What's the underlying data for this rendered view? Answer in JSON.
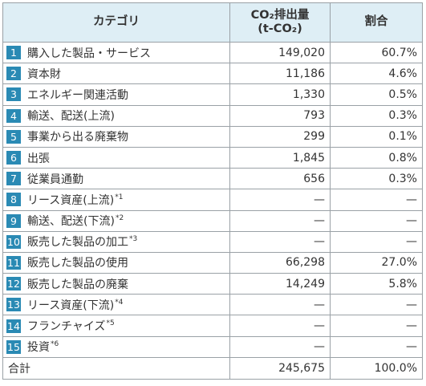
{
  "headers": {
    "category": "カテゴリ",
    "emissions_line1": "CO₂排出量",
    "emissions_line2": "(t-CO₂)",
    "share": "割合"
  },
  "rows": [
    {
      "num": "1",
      "label": "購入した製品・サービス",
      "note": "",
      "value": "149,020",
      "pct": "60.7%"
    },
    {
      "num": "2",
      "label": "資本財",
      "note": "",
      "value": "11,186",
      "pct": "4.6%"
    },
    {
      "num": "3",
      "label": "エネルギー関連活動",
      "note": "",
      "value": "1,330",
      "pct": "0.5%"
    },
    {
      "num": "4",
      "label": "輸送、配送(上流)",
      "note": "",
      "value": "793",
      "pct": "0.3%"
    },
    {
      "num": "5",
      "label": "事業から出る廃棄物",
      "note": "",
      "value": "299",
      "pct": "0.1%"
    },
    {
      "num": "6",
      "label": "出張",
      "note": "",
      "value": "1,845",
      "pct": "0.8%"
    },
    {
      "num": "7",
      "label": "従業員通勤",
      "note": "",
      "value": "656",
      "pct": "0.3%"
    },
    {
      "num": "8",
      "label": "リース資産(上流)",
      "note": "*1",
      "value": "—",
      "pct": "—"
    },
    {
      "num": "9",
      "label": "輸送、配送(下流)",
      "note": "*2",
      "value": "—",
      "pct": "—"
    },
    {
      "num": "10",
      "label": "販売した製品の加工",
      "note": "*3",
      "value": "—",
      "pct": "—"
    },
    {
      "num": "11",
      "label": "販売した製品の使用",
      "note": "",
      "value": "66,298",
      "pct": "27.0%"
    },
    {
      "num": "12",
      "label": "販売した製品の廃棄",
      "note": "",
      "value": "14,249",
      "pct": "5.8%"
    },
    {
      "num": "13",
      "label": "リース資産(下流)",
      "note": "*4",
      "value": "—",
      "pct": "—"
    },
    {
      "num": "14",
      "label": "フランチャイズ",
      "note": "*5",
      "value": "—",
      "pct": "—"
    },
    {
      "num": "15",
      "label": "投資",
      "note": "*6",
      "value": "—",
      "pct": "—"
    }
  ],
  "total": {
    "label": "合計",
    "value": "245,675",
    "pct": "100.0%"
  },
  "colors": {
    "header_bg": "#deeef5",
    "badge_bg": "#2a8ab4",
    "border": "#9aa1a6"
  }
}
